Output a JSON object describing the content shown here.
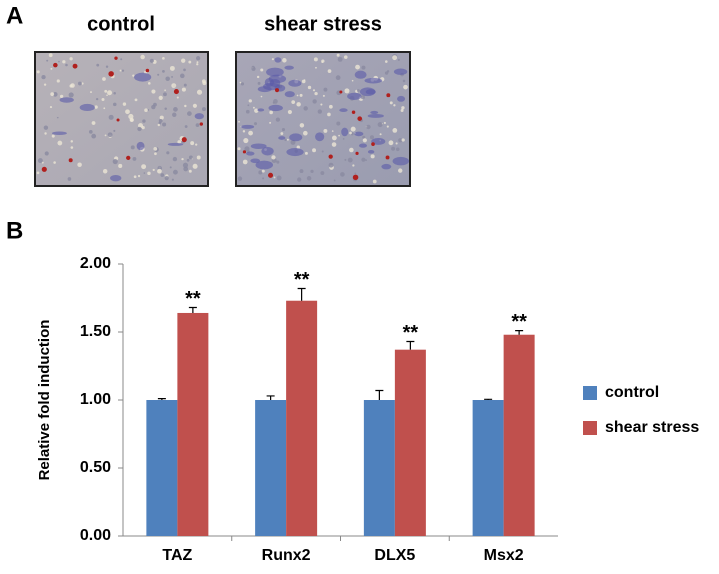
{
  "panel_a": {
    "label": "A",
    "images": [
      {
        "title": "control"
      },
      {
        "title": "shear stress"
      }
    ]
  },
  "chart_data": {
    "type": "bar",
    "panel_label": "B",
    "y_label": "Relative fold induction",
    "categories": [
      "TAZ",
      "Runx2",
      "DLX5",
      "Msx2"
    ],
    "series": [
      {
        "name": "control",
        "color": "#4f81bd",
        "values": [
          1.0,
          1.0,
          1.0,
          1.0
        ],
        "errors": [
          0.01,
          0.03,
          0.07,
          0.005
        ]
      },
      {
        "name": "shear stress",
        "color": "#c0504d",
        "values": [
          1.64,
          1.73,
          1.37,
          1.48
        ],
        "errors": [
          0.04,
          0.09,
          0.06,
          0.03
        ],
        "significance": [
          "**",
          "**",
          "**",
          "**"
        ]
      }
    ],
    "ylim": [
      0,
      2
    ],
    "yticks": [
      {
        "value": 0,
        "label": "0.00"
      },
      {
        "value": 0.5,
        "label": "0.50"
      },
      {
        "value": 1,
        "label": "1.00"
      },
      {
        "value": 1.5,
        "label": "1.50"
      },
      {
        "value": 2,
        "label": "2.00"
      }
    ],
    "legend": "right"
  }
}
